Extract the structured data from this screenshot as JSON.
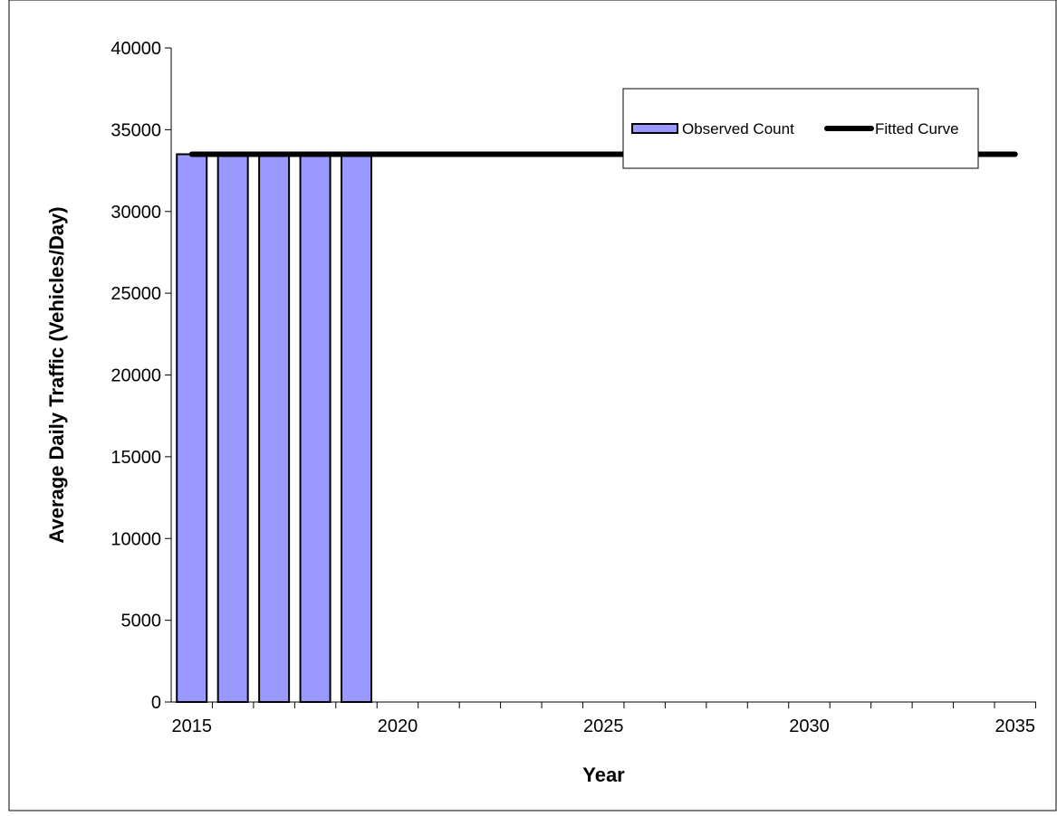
{
  "chart_data": {
    "type": "bar",
    "title": "",
    "xlabel": "Year",
    "ylabel": "Average Daily Traffic (Vehicles/Day)",
    "xlim": [
      2015,
      2035
    ],
    "ylim": [
      0,
      40000
    ],
    "y_ticks": [
      0,
      5000,
      10000,
      15000,
      20000,
      25000,
      30000,
      35000,
      40000
    ],
    "x_tick_labels": [
      2015,
      2020,
      2025,
      2030,
      2035
    ],
    "grid": false,
    "legend_position": "top-right",
    "series": [
      {
        "name": "Observed Count",
        "type": "bar",
        "color": "#9999ff",
        "x": [
          2015,
          2016,
          2017,
          2018,
          2019
        ],
        "values": [
          33500,
          33500,
          33500,
          33500,
          33500
        ]
      },
      {
        "name": "Fitted Curve",
        "type": "line",
        "color": "#000000",
        "x": [
          2015,
          2035
        ],
        "values": [
          33500,
          33500
        ]
      }
    ]
  }
}
